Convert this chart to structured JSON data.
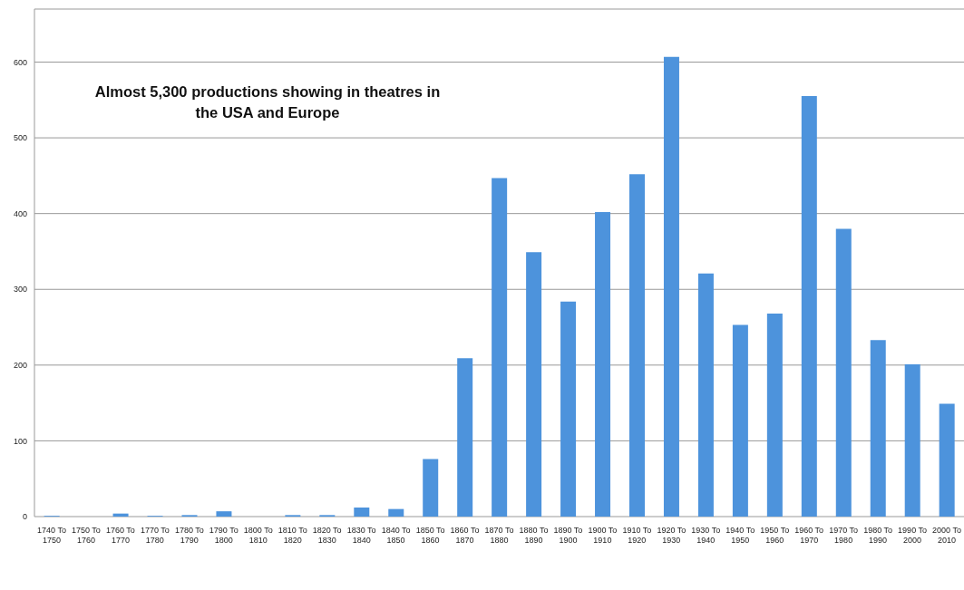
{
  "chart_data": {
    "type": "bar",
    "title": "Almost 5,300 productions showing in theatres in the USA and Europe",
    "categories": [
      "1740 To 1750",
      "1750 To 1760",
      "1760 To 1770",
      "1770 To 1780",
      "1780 To 1790",
      "1790 To 1800",
      "1800 To 1810",
      "1810 To 1820",
      "1820 To 1830",
      "1830 To 1840",
      "1840 To 1850",
      "1850 To 1860",
      "1860 To 1870",
      "1870 To 1880",
      "1880 To 1890",
      "1890 To 1900",
      "1900 To 1910",
      "1910 To 1920",
      "1920 To 1930",
      "1930 To 1940",
      "1940 To 1950",
      "1950 To 1960",
      "1960 To 1970",
      "1970 To 1980",
      "1980 To 1990",
      "1990 To 2000",
      "2000 To 2010"
    ],
    "values": [
      1,
      0,
      4,
      1,
      2,
      7,
      0,
      2,
      2,
      12,
      10,
      76,
      209,
      447,
      349,
      284,
      402,
      452,
      607,
      321,
      253,
      268,
      555,
      380,
      233,
      201,
      149
    ],
    "color": "#4d93dc",
    "ylim": [
      0,
      670
    ],
    "yticks": [
      0,
      100,
      200,
      300,
      400,
      500,
      600
    ],
    "grid": "y",
    "legend": false
  }
}
